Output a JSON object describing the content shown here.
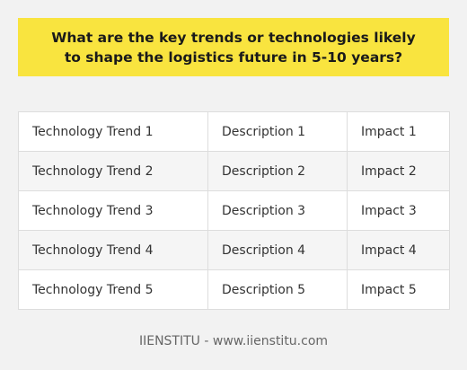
{
  "banner": {
    "title": "What are the key trends or technologies likely to shape the logistics future in 5-10 years?"
  },
  "table": {
    "rows": [
      {
        "trend": "Technology Trend 1",
        "description": "Description 1",
        "impact": "Impact 1"
      },
      {
        "trend": "Technology Trend 2",
        "description": "Description 2",
        "impact": "Impact 2"
      },
      {
        "trend": "Technology Trend 3",
        "description": "Description 3",
        "impact": "Impact 3"
      },
      {
        "trend": "Technology Trend 4",
        "description": "Description 4",
        "impact": "Impact 4"
      },
      {
        "trend": "Technology Trend 5",
        "description": "Description 5",
        "impact": "Impact 5"
      }
    ]
  },
  "footer": {
    "text": "IIENSTITU - www.iienstitu.com"
  },
  "colors": {
    "banner_background": "#f9e43f",
    "page_background": "#f2f2f2",
    "striped_row": "#f5f5f5"
  }
}
